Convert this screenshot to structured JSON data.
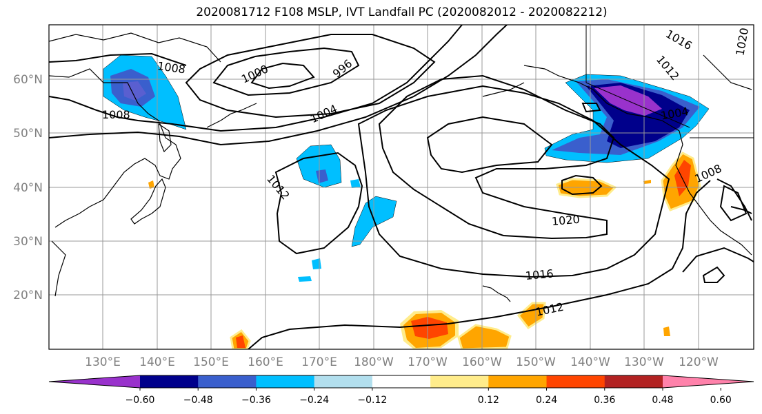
{
  "title": "2020081712 F108 MSLP, IVT Landfall PC (2020082012 - 2020082212)",
  "latitude_labels": [
    "60°N",
    "50°N",
    "40°N",
    "30°N",
    "20°N"
  ],
  "longitude_labels": [
    "130°E",
    "140°E",
    "150°E",
    "160°E",
    "170°E",
    "180°W",
    "170°W",
    "160°W",
    "150°W",
    "140°W",
    "130°W",
    "120°W"
  ],
  "contour_labels": [
    "1008",
    "1008",
    "1000",
    "996",
    "1004",
    "1012",
    "1020",
    "1016",
    "1012",
    "1008",
    "1004",
    "1012",
    "1016",
    "1020"
  ],
  "colorbar": {
    "colors": [
      "#9932CC",
      "#00008B",
      "#3A5FCD",
      "#00BFFF",
      "#B2DFEE",
      "#FFFFFF",
      "#FFEC8B",
      "#FFA500",
      "#FF4500",
      "#B22222",
      "#FF82AB"
    ],
    "ticks": [
      "−0.60",
      "−0.48",
      "−0.36",
      "−0.24",
      "−0.12",
      "0.12",
      "0.24",
      "0.36",
      "0.48",
      "0.60"
    ]
  }
}
